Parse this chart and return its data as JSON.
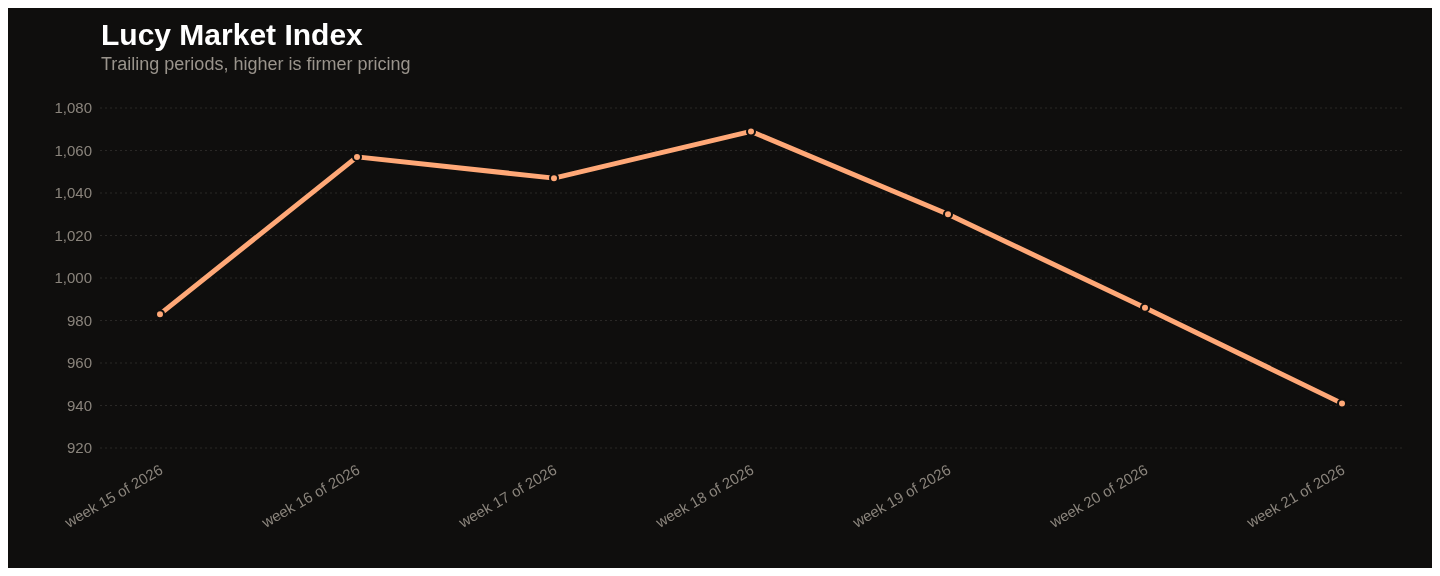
{
  "chart_data": {
    "type": "line",
    "title": "Lucy Market Index",
    "subtitle": "Trailing periods, higher is firmer pricing",
    "categories": [
      "week 15 of 2026",
      "week 16 of 2026",
      "week 17 of 2026",
      "week 18 of 2026",
      "week 19 of 2026",
      "week 20 of 2026",
      "week 21 of 2026"
    ],
    "series": [
      {
        "color": "#ffa877",
        "values": [
          983,
          1057,
          1047,
          1069,
          1030,
          986,
          941
        ]
      }
    ],
    "ylim": [
      920,
      1080
    ],
    "yticks": [
      {
        "value": 920,
        "label": "920"
      },
      {
        "value": 940,
        "label": "940"
      },
      {
        "value": 960,
        "label": "960"
      },
      {
        "value": 980,
        "label": "980"
      },
      {
        "value": 1000,
        "label": "1,000"
      },
      {
        "value": 1020,
        "label": "1,020"
      },
      {
        "value": 1040,
        "label": "1,040"
      },
      {
        "value": 1060,
        "label": "1,060"
      },
      {
        "value": 1080,
        "label": "1,080"
      }
    ],
    "grid": "y",
    "marker": "circle",
    "line_style": "solid"
  }
}
